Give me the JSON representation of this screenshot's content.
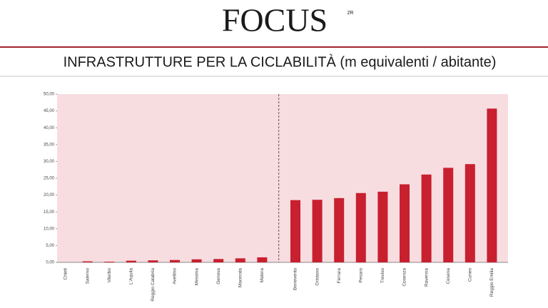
{
  "header": {
    "logo": "FOCUS",
    "logo_mark": "2R"
  },
  "chart_data": {
    "type": "bar",
    "title": "INFRASTRUTTURE PER LA CICLABILITÀ (m equivalenti / abitante)",
    "categories": [
      "Chieti",
      "Salerno",
      "Viterbo",
      "L'Aquila",
      "Reggio Calabria",
      "Avellino",
      "Messina",
      "Genova",
      "Macerata",
      "Matera",
      "Benevento",
      "Oristano",
      "Ferrara",
      "Pesaro",
      "Treviso",
      "Cosenza",
      "Ravenna",
      "Cesena",
      "Cuneo",
      "Reggio Emilia"
    ],
    "values": [
      0,
      0.3,
      0.2,
      0.5,
      0.6,
      0.7,
      0.9,
      1.0,
      1.2,
      1.5,
      18.5,
      18.6,
      19.1,
      20.6,
      21.0,
      23.2,
      26.1,
      28.1,
      29.2,
      45.7
    ],
    "color": "#c8202f",
    "ylim": [
      0,
      50
    ],
    "yticks": [
      {
        "value": 0,
        "label": "0,00"
      },
      {
        "value": 5,
        "label": "5,00"
      },
      {
        "value": 10,
        "label": "10,00"
      },
      {
        "value": 15,
        "label": "15,00"
      },
      {
        "value": 20,
        "label": "20,00"
      },
      {
        "value": 25,
        "label": "25,00"
      },
      {
        "value": 30,
        "label": "30,00"
      },
      {
        "value": 35,
        "label": "35,00"
      },
      {
        "value": 40,
        "label": "40,00"
      },
      {
        "value": 45,
        "label": "45,00"
      },
      {
        "value": 50,
        "label": "50,00"
      }
    ],
    "grid": false
  }
}
